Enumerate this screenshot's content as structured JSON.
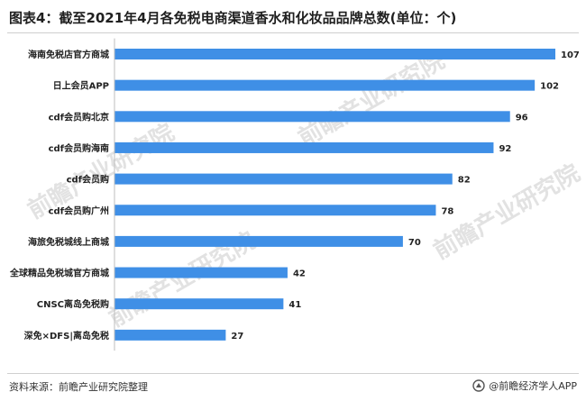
{
  "header": {
    "title": "图表4：截至2021年4月各免税电商渠道香水和化妆品品牌总数(单位：个)"
  },
  "footer": {
    "source": "资料来源：前瞻产业研究院整理",
    "brand": "@前瞻经济学人APP"
  },
  "watermark_text": "前瞻产业研究院",
  "colors": {
    "bar": "#3f8fe6",
    "text": "#222222"
  },
  "chart_data": {
    "type": "bar",
    "orientation": "horizontal",
    "title": "图表4：截至2021年4月各免税电商渠道香水和化妆品品牌总数(单位：个)",
    "categories": [
      "海南免税店官方商城",
      "日上会员APP",
      "cdf会员购北京",
      "cdf会员购海南",
      "cdf会员购",
      "cdf会员购广州",
      "海旅免税城线上商城",
      "全球精品免税城官方商城",
      "CNSC离岛免税购",
      "深免×DFS|离岛免税"
    ],
    "values": [
      107,
      102,
      96,
      92,
      82,
      78,
      70,
      42,
      41,
      27
    ],
    "xlim": [
      0,
      107
    ],
    "grid": false,
    "legend": "none"
  }
}
